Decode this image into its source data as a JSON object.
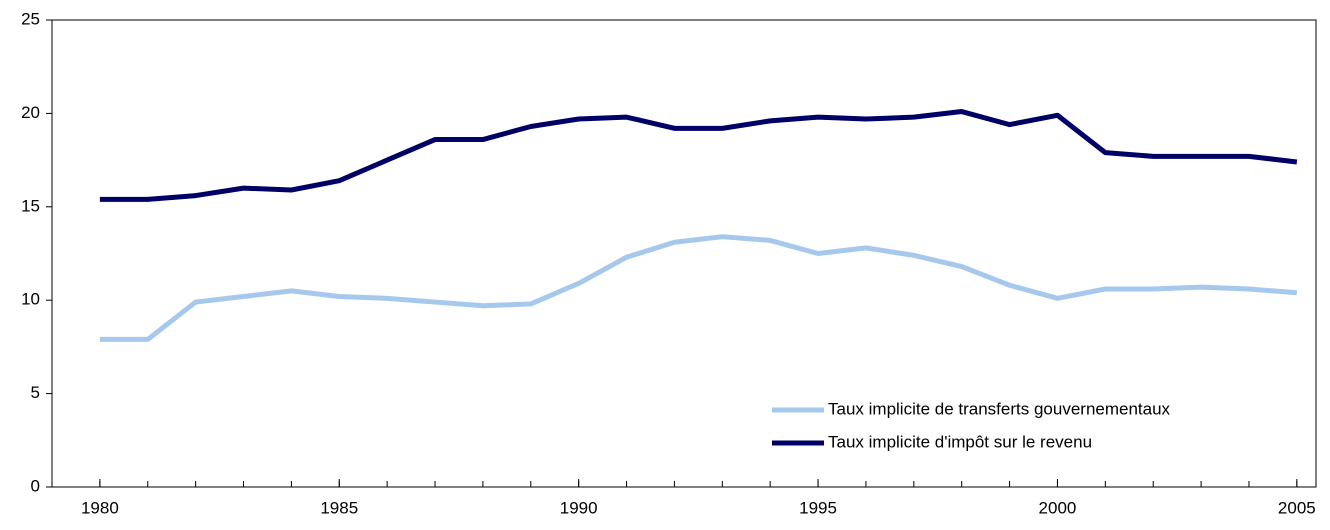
{
  "chart_data": {
    "type": "line",
    "x": [
      1980,
      1981,
      1982,
      1983,
      1984,
      1985,
      1986,
      1987,
      1988,
      1989,
      1990,
      1991,
      1992,
      1993,
      1994,
      1995,
      1996,
      1997,
      1998,
      1999,
      2000,
      2001,
      2002,
      2003,
      2004,
      2005
    ],
    "series": [
      {
        "name": "Taux implicite de transferts gouvernementaux",
        "color": "#a6c8ec",
        "values": [
          7.9,
          7.9,
          9.9,
          10.2,
          10.5,
          10.2,
          10.1,
          9.9,
          9.7,
          9.8,
          10.9,
          12.3,
          13.1,
          13.4,
          13.2,
          12.5,
          12.8,
          12.4,
          11.8,
          10.8,
          10.1,
          10.6,
          10.6,
          10.7,
          10.6,
          10.4
        ]
      },
      {
        "name": "Taux implicite d'impôt sur le revenu",
        "color": "#000066",
        "values": [
          15.4,
          15.4,
          15.6,
          16.0,
          15.9,
          16.4,
          17.5,
          18.6,
          18.6,
          19.3,
          19.7,
          19.8,
          19.2,
          19.2,
          19.6,
          19.8,
          19.7,
          19.8,
          20.1,
          19.4,
          19.9,
          17.9,
          17.7,
          17.7,
          17.7,
          17.4
        ]
      }
    ],
    "xlim": [
      1979,
      2005.4
    ],
    "xticks": [
      1980,
      1985,
      1990,
      1995,
      2000,
      2005
    ],
    "ylim": [
      0,
      25
    ],
    "yticks": [
      0,
      5,
      10,
      15,
      20,
      25
    ],
    "grid": false,
    "legend": "lower-right"
  }
}
